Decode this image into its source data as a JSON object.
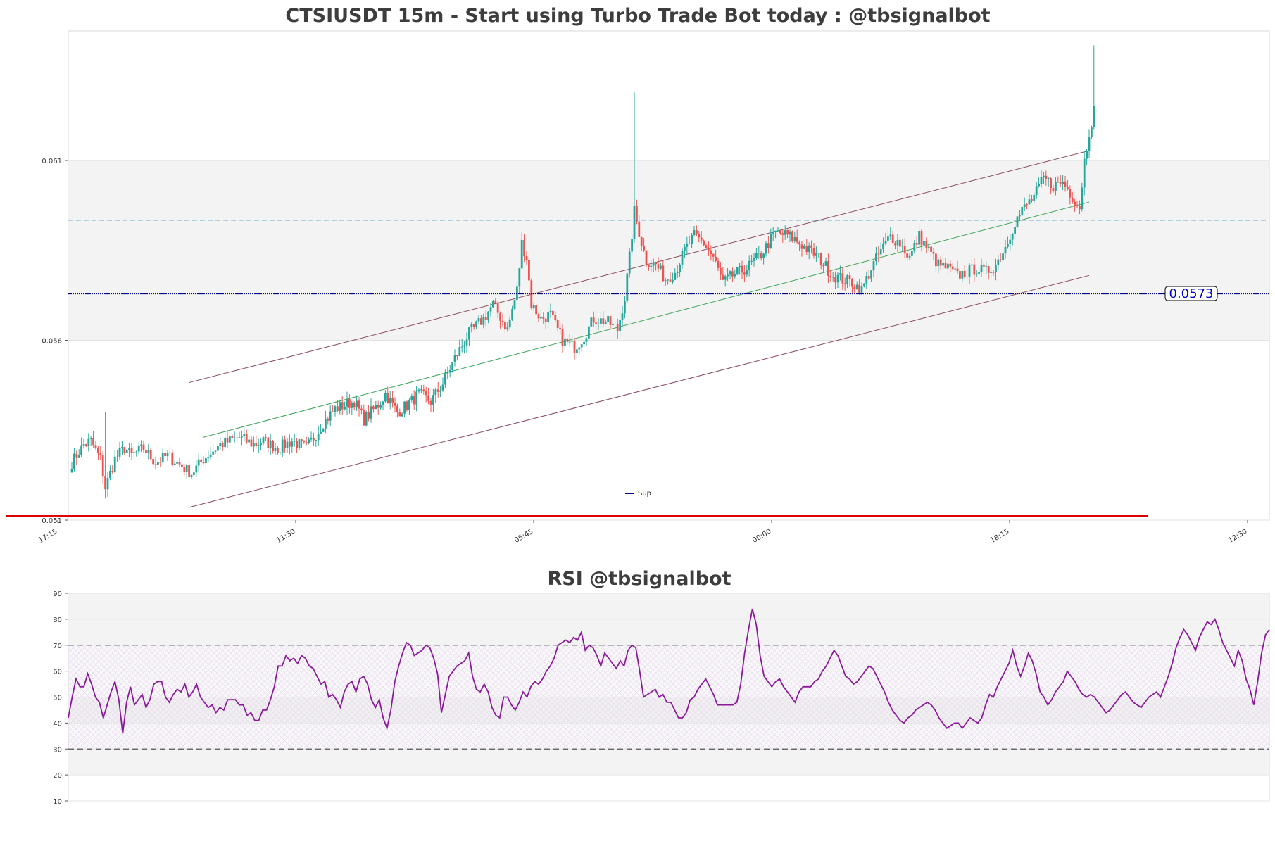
{
  "chart_data": [
    {
      "type": "candlestick",
      "title": "CTSIUSDT 15m - Start using Turbo Trade Bot today : @tbsignalbot",
      "x_tick_labels": [
        "17:15",
        "11:30",
        "05:45",
        "00:00",
        "18:15",
        "12:30"
      ],
      "y_ticks": [
        0.051,
        0.056,
        0.061
      ],
      "y_tick_labels": [
        "0.051",
        "0.056",
        "0.061"
      ],
      "ylim": [
        0.051,
        0.0646
      ],
      "highlight_band": [
        0.056,
        0.061
      ],
      "legend": {
        "entries": [
          "Sup"
        ],
        "placement": "bottom-center"
      },
      "support_level": {
        "value": 0.0573,
        "label": "0.0573",
        "color": "#00008b"
      },
      "resistance_dashed_level": 0.05934,
      "bottom_support_line": {
        "value": 0.05101,
        "color": "#dd0000"
      },
      "channel": {
        "upper": {
          "start_index": 12,
          "start": 0.05419,
          "end_index": 295,
          "end": 0.06228
        },
        "middle": {
          "start_index": 18,
          "start": 0.05265,
          "end_index": 295,
          "end": 0.06081
        },
        "lower": {
          "start_index": 12,
          "start": 0.05072,
          "end_index": 295,
          "end": 0.05881
        }
      },
      "series": [
        {
          "name": "CTSIUSDT",
          "close_anchors": [
            [
              0,
              0.0526
            ],
            [
              5,
              0.0531
            ],
            [
              8,
              0.0532
            ],
            [
              12,
              0.0527
            ],
            [
              14,
              0.0519
            ],
            [
              18,
              0.0527
            ],
            [
              22,
              0.053
            ],
            [
              25,
              0.0528
            ],
            [
              30,
              0.053
            ],
            [
              35,
              0.0526
            ],
            [
              40,
              0.0528
            ],
            [
              46,
              0.0525
            ],
            [
              50,
              0.0523
            ],
            [
              55,
              0.0527
            ],
            [
              62,
              0.0531
            ],
            [
              70,
              0.0533
            ],
            [
              76,
              0.0531
            ],
            [
              80,
              0.0532
            ],
            [
              86,
              0.053
            ],
            [
              92,
              0.0532
            ],
            [
              98,
              0.053
            ],
            [
              105,
              0.0537
            ],
            [
              110,
              0.0541
            ],
            [
              118,
              0.0543
            ],
            [
              122,
              0.0538
            ],
            [
              128,
              0.0542
            ],
            [
              131,
              0.0545
            ],
            [
              136,
              0.054
            ],
            [
              140,
              0.0542
            ],
            [
              145,
              0.0545
            ],
            [
              150,
              0.0543
            ],
            [
              155,
              0.0548
            ],
            [
              160,
              0.0555
            ],
            [
              166,
              0.0562
            ],
            [
              172,
              0.0566
            ],
            [
              176,
              0.057
            ],
            [
              182,
              0.0563
            ],
            [
              186,
              0.0574
            ],
            [
              188,
              0.0587
            ],
            [
              190,
              0.0583
            ],
            [
              192,
              0.057
            ],
            [
              196,
              0.0566
            ],
            [
              200,
              0.0567
            ],
            [
              205,
              0.056
            ],
            [
              210,
              0.0558
            ],
            [
              214,
              0.0561
            ],
            [
              218,
              0.0566
            ],
            [
              224,
              0.0565
            ],
            [
              228,
              0.0563
            ],
            [
              231,
              0.0572
            ],
            [
              233,
              0.0583
            ],
            [
              235,
              0.0596
            ],
            [
              237,
              0.059
            ],
            [
              240,
              0.0582
            ],
            [
              244,
              0.0581
            ],
            [
              248,
              0.0577
            ],
            [
              252,
              0.0579
            ],
            [
              256,
              0.0585
            ],
            [
              260,
              0.0589
            ],
            [
              264,
              0.0587
            ],
            [
              268,
              0.0583
            ],
            [
              272,
              0.0576
            ],
            [
              276,
              0.0578
            ],
            [
              282,
              0.058
            ],
            [
              288,
              0.0584
            ],
            [
              294,
              0.059
            ],
            [
              300,
              0.0589
            ],
            [
              306,
              0.0586
            ],
            [
              312,
              0.0583
            ],
            [
              318,
              0.0578
            ],
            [
              322,
              0.0577
            ],
            [
              326,
              0.0576
            ],
            [
              330,
              0.0574
            ],
            [
              334,
              0.058
            ],
            [
              338,
              0.0585
            ],
            [
              342,
              0.0589
            ],
            [
              346,
              0.0587
            ],
            [
              350,
              0.0583
            ],
            [
              354,
              0.0589
            ],
            [
              358,
              0.0585
            ],
            [
              362,
              0.0581
            ],
            [
              366,
              0.058
            ],
            [
              370,
              0.0578
            ],
            [
              374,
              0.0579
            ],
            [
              378,
              0.058
            ],
            [
              382,
              0.0579
            ],
            [
              386,
              0.0581
            ],
            [
              390,
              0.0586
            ],
            [
              394,
              0.0593
            ],
            [
              398,
              0.0597
            ],
            [
              402,
              0.06
            ],
            [
              406,
              0.0605
            ],
            [
              410,
              0.0603
            ],
            [
              414,
              0.0604
            ],
            [
              418,
              0.06
            ],
            [
              421,
              0.0597
            ],
            [
              423,
              0.061
            ],
            [
              425,
              0.0618
            ],
            [
              427,
              0.0624
            ]
          ]
        },
        {
          "name": "RSI",
          "chart": "RSI @tbsignalbot",
          "values": [
            42,
            50,
            57,
            54,
            54,
            59,
            55,
            50,
            48,
            42,
            47,
            52,
            56,
            49,
            36,
            48,
            54,
            47,
            49,
            51,
            46,
            49,
            55,
            56,
            56,
            50,
            48,
            51,
            53,
            52,
            55,
            50,
            52,
            55,
            50,
            48,
            46,
            47,
            44,
            46,
            45,
            49,
            49,
            49,
            47,
            47,
            43,
            44,
            41,
            41,
            45,
            45,
            49,
            54,
            62,
            62,
            66,
            64,
            65,
            63,
            66,
            65,
            62,
            61,
            58,
            55,
            56,
            50,
            51,
            49,
            46,
            52,
            55,
            56,
            52,
            57,
            58,
            55,
            49,
            46,
            49,
            42,
            38,
            45,
            56,
            62,
            67,
            71,
            70,
            66,
            67,
            68,
            70,
            69,
            65,
            59,
            44,
            51,
            58,
            60,
            62,
            63,
            64,
            67,
            58,
            53,
            52,
            55,
            52,
            46,
            43,
            42,
            50,
            50,
            47,
            45,
            48,
            52,
            50,
            54,
            56,
            55,
            57,
            60,
            62,
            65,
            70,
            71,
            72,
            71,
            73,
            72,
            75,
            68,
            70,
            69,
            66,
            62,
            67,
            65,
            63,
            61,
            64,
            62,
            68,
            70,
            69,
            60,
            50,
            51,
            52,
            53,
            50,
            51,
            48,
            48,
            45,
            42,
            42,
            44,
            49,
            50,
            53,
            55,
            57,
            54,
            51,
            47,
            47,
            47,
            47,
            47,
            48,
            55,
            67,
            76,
            84,
            78,
            66,
            58,
            56,
            54,
            56,
            57,
            54,
            52,
            50,
            48,
            52,
            54,
            54,
            54,
            56,
            57,
            60,
            62,
            65,
            68,
            66,
            62,
            58,
            57,
            55,
            56,
            58,
            60,
            62,
            61,
            58,
            55,
            52,
            48,
            45,
            43,
            41,
            40,
            42,
            43,
            45,
            46,
            47,
            48,
            47,
            45,
            42,
            40,
            38,
            39,
            40,
            40,
            38,
            40,
            42,
            41,
            40,
            42,
            47,
            51,
            50,
            54,
            57,
            60,
            63,
            68,
            62,
            58,
            62,
            67,
            64,
            59,
            52,
            50,
            47,
            49,
            52,
            54,
            56,
            60,
            58,
            56,
            53,
            51,
            50,
            51,
            50,
            48,
            46,
            44,
            45,
            47,
            49,
            51,
            52,
            50,
            48,
            47,
            46,
            48,
            50,
            51,
            52,
            50,
            54,
            58,
            63,
            69,
            73,
            76,
            74,
            71,
            68,
            73,
            76,
            79,
            78,
            80,
            76,
            71,
            68,
            65,
            62,
            68,
            64,
            57,
            53,
            47,
            56,
            67,
            74,
            76
          ]
        }
      ]
    },
    {
      "type": "line",
      "title": "RSI @tbsignalbot",
      "y_ticks": [
        10,
        20,
        30,
        40,
        50,
        60,
        70,
        80,
        90
      ],
      "ylim": [
        10,
        90
      ],
      "reference_lines": [
        30,
        70
      ],
      "bands": [
        [
          20,
          30
        ],
        [
          40,
          50
        ],
        [
          70,
          80
        ],
        [
          80,
          90
        ]
      ],
      "line_color": "#8b1a9b"
    }
  ]
}
